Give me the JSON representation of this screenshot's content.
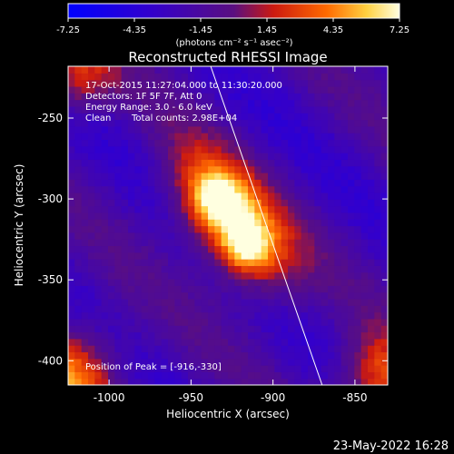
{
  "chart_data": {
    "type": "heatmap",
    "title": "Reconstructed RHESSI Image",
    "xlabel": "Heliocentric X (arcsec)",
    "ylabel": "Heliocentric Y (arcsec)",
    "xlim": [
      -1025,
      -830
    ],
    "ylim": [
      -415,
      -218
    ],
    "xticks": [
      -1000,
      -950,
      -900,
      -850
    ],
    "yticks": [
      -250,
      -300,
      -350,
      -400
    ],
    "colorbar": {
      "range": [
        -7.25,
        7.25
      ],
      "ticks": [
        "-7.25",
        "-4.35",
        "-1.45",
        "1.45",
        "4.35",
        "7.25"
      ],
      "unit": "(photons cm⁻² s⁻¹ asec⁻²)"
    },
    "annotations": [
      "17-Oct-2015 11:27:04.000 to 11:30:20.000",
      "Detectors: 1F 5F 7F, Att 0",
      "Energy Range: 3.0 - 6.0 keV",
      "Clean",
      "Total counts: 2.98E+04"
    ],
    "peak_label": "Position of Peak = [-916,-330]",
    "peak": [
      -916,
      -330
    ],
    "limb_line": [
      [
        -938,
        -218
      ],
      [
        -870,
        -415
      ]
    ],
    "sources": [
      {
        "x": -935,
        "y": -298,
        "value": 7.0
      },
      {
        "x": -916,
        "y": -330,
        "value": 7.25
      }
    ],
    "footer_date": "23-May-2022 16:28"
  }
}
